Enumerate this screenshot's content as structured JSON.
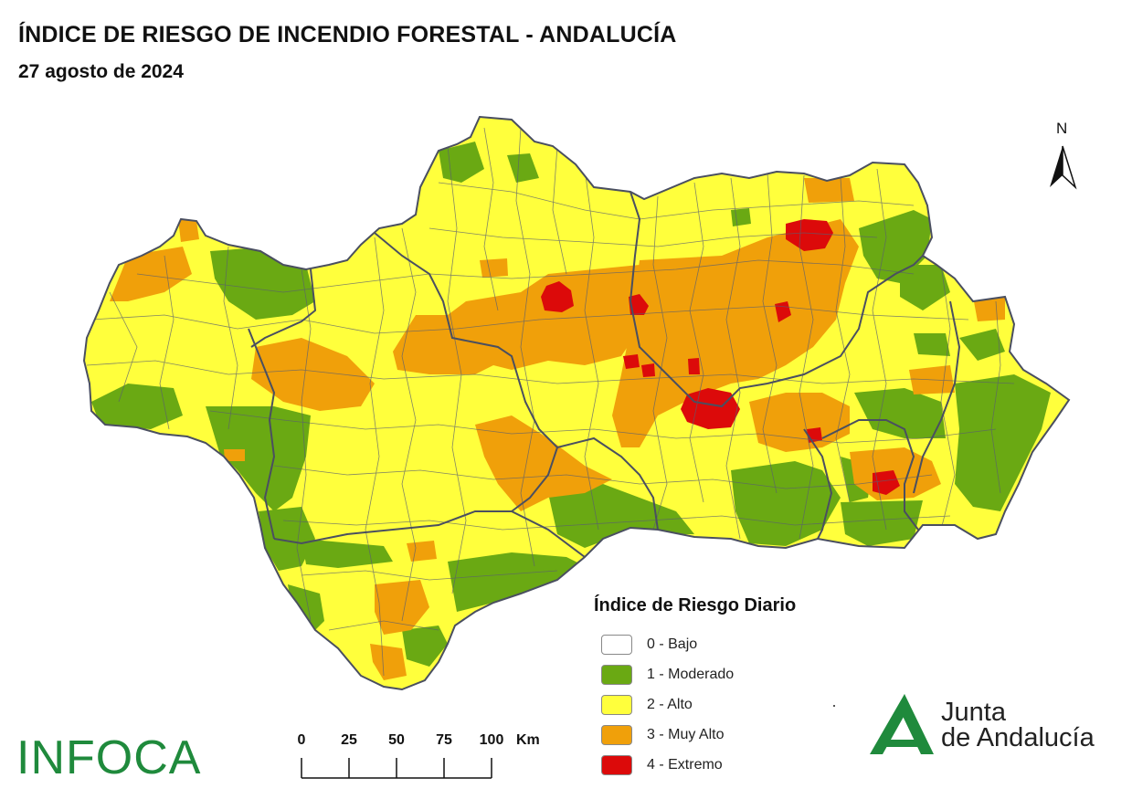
{
  "header": {
    "title": "ÍNDICE DE RIESGO DE INCENDIO FORESTAL - ANDALUCÍA",
    "subtitle": "27 agosto de 2024"
  },
  "north_arrow": {
    "label": "N"
  },
  "legend": {
    "title": "Índice de Riesgo Diario",
    "items": [
      {
        "label": "0 - Bajo",
        "color": "#ffffff"
      },
      {
        "label": "1 - Moderado",
        "color": "#6aa913"
      },
      {
        "label": "2 - Alto",
        "color": "#ffff3c"
      },
      {
        "label": "3 - Muy Alto",
        "color": "#f0a00a"
      },
      {
        "label": "4 - Extremo",
        "color": "#dc0a0a"
      }
    ]
  },
  "scale_bar": {
    "ticks": [
      "0",
      "25",
      "50",
      "75",
      "100"
    ],
    "unit": "Km"
  },
  "logos": {
    "infoca": "INFOCA",
    "junta_line1": "Junta",
    "junta_line2": "de Andalucía"
  },
  "colors": {
    "bajo": "#ffffff",
    "moderado": "#6aa913",
    "alto": "#ffff3c",
    "muy_alto": "#f0a00a",
    "extremo": "#dc0a0a",
    "border": "#555a68",
    "brand_green": "#1f8a3c"
  }
}
